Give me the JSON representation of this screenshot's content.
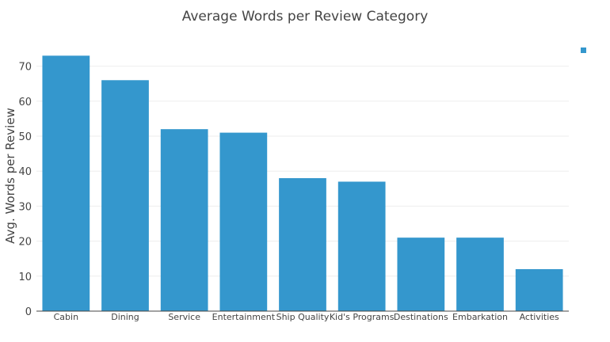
{
  "chart_data": {
    "type": "bar",
    "title": "Average Words per Review Category",
    "xlabel": "",
    "ylabel": "Avg. Words per Review",
    "categories": [
      "Cabin",
      "Dining",
      "Service",
      "Entertainment",
      "Ship Quality",
      "Kid's Programs",
      "Destinations",
      "Embarkation",
      "Activities"
    ],
    "values": [
      73,
      66,
      52,
      51,
      38,
      37,
      21,
      21,
      12
    ],
    "yticks": [
      0,
      10,
      20,
      30,
      40,
      50,
      60,
      70
    ],
    "ylim": [
      0,
      77
    ],
    "grid": true,
    "legend": "top-right",
    "bar_color": "#3497cd"
  }
}
